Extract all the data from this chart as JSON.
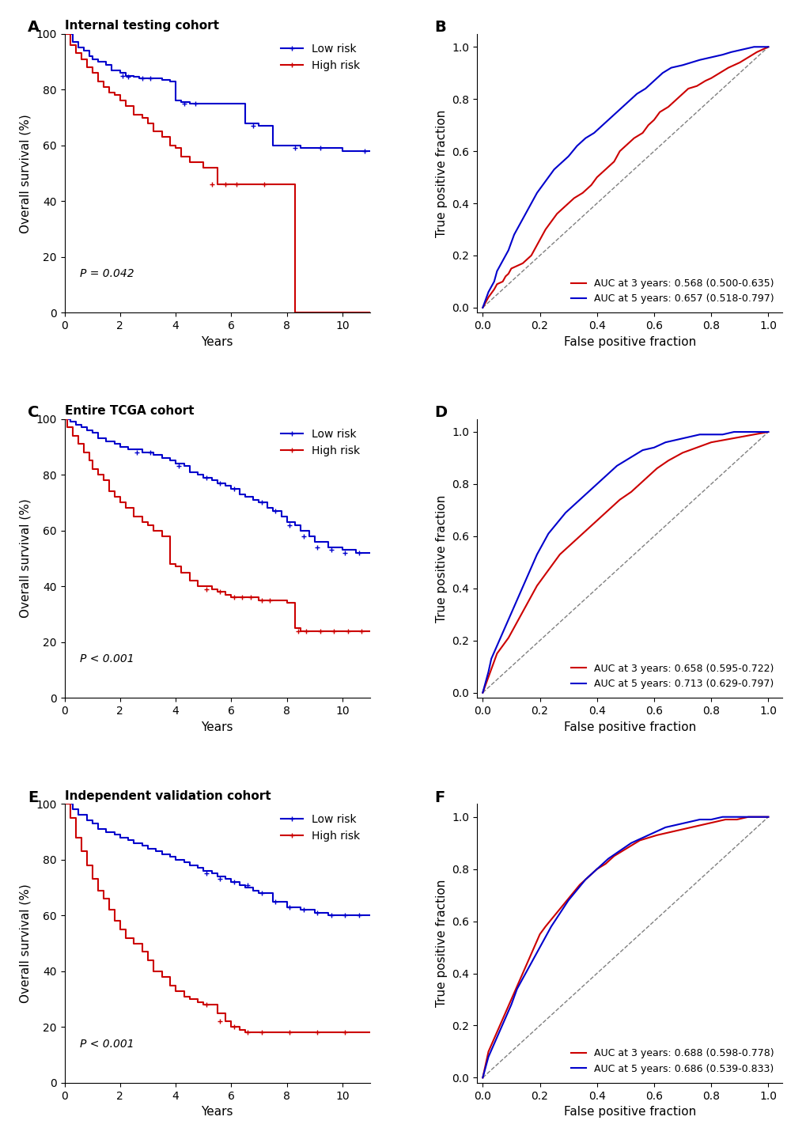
{
  "panels": [
    {
      "label": "A",
      "title": "Internal testing cohort",
      "type": "km",
      "p_value": "P = 0.042",
      "low_risk": {
        "times": [
          0,
          0.3,
          0.5,
          0.7,
          0.9,
          1.0,
          1.2,
          1.5,
          1.7,
          2.0,
          2.2,
          2.5,
          2.7,
          3.0,
          3.5,
          3.8,
          4.0,
          4.2,
          4.5,
          5.0,
          5.5,
          6.0,
          6.5,
          7.0,
          7.5,
          8.0,
          8.5,
          9.0,
          9.5,
          10.0,
          10.5,
          11.0
        ],
        "survival": [
          100,
          97,
          95,
          94,
          92,
          91,
          90,
          89,
          87,
          86,
          85,
          84.5,
          84,
          84,
          83.5,
          83,
          76,
          75.5,
          75,
          75,
          75,
          75,
          68,
          67,
          60,
          60,
          59,
          59,
          59,
          58,
          58,
          58
        ],
        "censored_times": [
          2.1,
          2.3,
          2.8,
          3.1,
          4.3,
          4.7,
          6.8,
          8.3,
          9.2,
          10.8
        ],
        "censored_surv": [
          85,
          84.5,
          84,
          84,
          75,
          75,
          67,
          59,
          59,
          58
        ]
      },
      "high_risk": {
        "times": [
          0,
          0.2,
          0.4,
          0.6,
          0.8,
          1.0,
          1.2,
          1.4,
          1.6,
          1.8,
          2.0,
          2.2,
          2.5,
          2.8,
          3.0,
          3.2,
          3.5,
          3.8,
          4.0,
          4.2,
          4.5,
          4.8,
          5.0,
          5.2,
          5.5,
          6.0,
          6.5,
          7.0,
          7.5,
          8.0,
          8.3,
          8.5,
          11.0
        ],
        "survival": [
          100,
          96,
          93,
          91,
          88,
          86,
          83,
          81,
          79,
          78,
          76,
          74,
          71,
          70,
          68,
          65,
          63,
          60,
          59,
          56,
          54,
          54,
          52,
          52,
          46,
          46,
          46,
          46,
          46,
          46,
          0,
          0,
          0
        ],
        "censored_times": [
          5.3,
          5.8,
          6.2,
          7.2
        ],
        "censored_surv": [
          46,
          46,
          46,
          46
        ]
      },
      "xlim": [
        0,
        11
      ],
      "ylim": [
        0,
        100
      ],
      "xticks": [
        0,
        2,
        4,
        6,
        8,
        10
      ],
      "yticks": [
        0,
        20,
        40,
        60,
        80,
        100
      ]
    },
    {
      "label": "B",
      "type": "roc",
      "auc_3yr": "AUC at 3 years: 0.568 (0.500-0.635)",
      "auc_5yr": "AUC at 5 years: 0.657 (0.518-0.797)",
      "roc_3yr_x": [
        0.0,
        0.01,
        0.02,
        0.04,
        0.05,
        0.07,
        0.08,
        0.09,
        0.1,
        0.12,
        0.14,
        0.15,
        0.17,
        0.18,
        0.2,
        0.22,
        0.24,
        0.26,
        0.28,
        0.3,
        0.32,
        0.35,
        0.38,
        0.4,
        0.43,
        0.46,
        0.48,
        0.5,
        0.53,
        0.56,
        0.58,
        0.6,
        0.62,
        0.65,
        0.68,
        0.7,
        0.72,
        0.75,
        0.78,
        0.8,
        0.83,
        0.86,
        0.9,
        0.93,
        0.96,
        1.0
      ],
      "roc_3yr_y": [
        0.0,
        0.02,
        0.04,
        0.07,
        0.09,
        0.1,
        0.12,
        0.13,
        0.15,
        0.16,
        0.17,
        0.18,
        0.2,
        0.22,
        0.26,
        0.3,
        0.33,
        0.36,
        0.38,
        0.4,
        0.42,
        0.44,
        0.47,
        0.5,
        0.53,
        0.56,
        0.6,
        0.62,
        0.65,
        0.67,
        0.7,
        0.72,
        0.75,
        0.77,
        0.8,
        0.82,
        0.84,
        0.85,
        0.87,
        0.88,
        0.9,
        0.92,
        0.94,
        0.96,
        0.98,
        1.0
      ],
      "roc_5yr_x": [
        0.0,
        0.01,
        0.02,
        0.03,
        0.04,
        0.05,
        0.06,
        0.07,
        0.08,
        0.09,
        0.1,
        0.11,
        0.13,
        0.15,
        0.17,
        0.19,
        0.21,
        0.23,
        0.25,
        0.27,
        0.3,
        0.33,
        0.36,
        0.39,
        0.42,
        0.45,
        0.48,
        0.51,
        0.54,
        0.57,
        0.6,
        0.63,
        0.66,
        0.7,
        0.73,
        0.76,
        0.8,
        0.84,
        0.87,
        0.91,
        0.95,
        1.0
      ],
      "roc_5yr_y": [
        0.0,
        0.03,
        0.06,
        0.08,
        0.1,
        0.14,
        0.16,
        0.18,
        0.2,
        0.22,
        0.25,
        0.28,
        0.32,
        0.36,
        0.4,
        0.44,
        0.47,
        0.5,
        0.53,
        0.55,
        0.58,
        0.62,
        0.65,
        0.67,
        0.7,
        0.73,
        0.76,
        0.79,
        0.82,
        0.84,
        0.87,
        0.9,
        0.92,
        0.93,
        0.94,
        0.95,
        0.96,
        0.97,
        0.98,
        0.99,
        1.0,
        1.0
      ]
    },
    {
      "label": "C",
      "title": "Entire TCGA cohort",
      "type": "km",
      "p_value": "P < 0.001",
      "low_risk": {
        "times": [
          0,
          0.2,
          0.4,
          0.6,
          0.8,
          1.0,
          1.2,
          1.5,
          1.8,
          2.0,
          2.3,
          2.5,
          2.8,
          3.0,
          3.2,
          3.5,
          3.8,
          4.0,
          4.3,
          4.5,
          4.8,
          5.0,
          5.3,
          5.5,
          5.8,
          6.0,
          6.3,
          6.5,
          6.8,
          7.0,
          7.3,
          7.5,
          7.8,
          8.0,
          8.3,
          8.5,
          8.8,
          9.0,
          9.5,
          10.0,
          10.5,
          11.0
        ],
        "survival": [
          100,
          99,
          98,
          97,
          96,
          95,
          93,
          92,
          91,
          90,
          89,
          89,
          88,
          88,
          87,
          86,
          85,
          84,
          83,
          81,
          80,
          79,
          78,
          77,
          76,
          75,
          73,
          72,
          71,
          70,
          68,
          67,
          65,
          63,
          62,
          60,
          58,
          56,
          54,
          53,
          52,
          52
        ],
        "censored_times": [
          2.6,
          3.1,
          4.1,
          5.1,
          5.6,
          6.1,
          7.1,
          7.6,
          8.1,
          8.6,
          9.1,
          9.6,
          10.1,
          10.6
        ],
        "censored_surv": [
          88,
          88,
          83,
          79,
          77,
          75,
          70,
          67,
          62,
          58,
          54,
          53,
          52,
          52
        ]
      },
      "high_risk": {
        "times": [
          0,
          0.1,
          0.3,
          0.5,
          0.7,
          0.9,
          1.0,
          1.2,
          1.4,
          1.6,
          1.8,
          2.0,
          2.2,
          2.5,
          2.8,
          3.0,
          3.2,
          3.5,
          3.8,
          4.0,
          4.2,
          4.5,
          4.8,
          5.0,
          5.3,
          5.5,
          5.8,
          6.0,
          6.3,
          6.5,
          6.8,
          7.0,
          7.3,
          7.5,
          7.8,
          8.0,
          8.3,
          8.5,
          9.0,
          9.5,
          10.0,
          10.5,
          11.0
        ],
        "survival": [
          100,
          97,
          94,
          91,
          88,
          85,
          82,
          80,
          78,
          74,
          72,
          70,
          68,
          65,
          63,
          62,
          60,
          58,
          48,
          47,
          45,
          42,
          40,
          40,
          39,
          38,
          37,
          36,
          36,
          36,
          36,
          35,
          35,
          35,
          35,
          34,
          25,
          24,
          24,
          24,
          24,
          24,
          24
        ],
        "censored_times": [
          5.1,
          5.6,
          6.1,
          6.4,
          6.7,
          7.1,
          7.4,
          8.4,
          8.7,
          9.2,
          9.7,
          10.2,
          10.7
        ],
        "censored_surv": [
          39,
          38,
          36,
          36,
          36,
          35,
          35,
          24,
          24,
          24,
          24,
          24,
          24
        ]
      },
      "xlim": [
        0,
        11
      ],
      "ylim": [
        0,
        100
      ],
      "xticks": [
        0,
        2,
        4,
        6,
        8,
        10
      ],
      "yticks": [
        0,
        20,
        40,
        60,
        80,
        100
      ]
    },
    {
      "label": "D",
      "type": "roc",
      "auc_3yr": "AUC at 3 years: 0.658 (0.595-0.722)",
      "auc_5yr": "AUC at 5 years: 0.713 (0.629-0.797)",
      "roc_3yr_x": [
        0.0,
        0.01,
        0.02,
        0.03,
        0.04,
        0.05,
        0.07,
        0.09,
        0.11,
        0.13,
        0.15,
        0.17,
        0.19,
        0.21,
        0.23,
        0.25,
        0.27,
        0.3,
        0.33,
        0.36,
        0.39,
        0.42,
        0.45,
        0.48,
        0.52,
        0.55,
        0.58,
        0.61,
        0.65,
        0.7,
        0.75,
        0.8,
        0.85,
        0.9,
        0.95,
        1.0
      ],
      "roc_3yr_y": [
        0.0,
        0.03,
        0.06,
        0.09,
        0.12,
        0.15,
        0.18,
        0.21,
        0.25,
        0.29,
        0.33,
        0.37,
        0.41,
        0.44,
        0.47,
        0.5,
        0.53,
        0.56,
        0.59,
        0.62,
        0.65,
        0.68,
        0.71,
        0.74,
        0.77,
        0.8,
        0.83,
        0.86,
        0.89,
        0.92,
        0.94,
        0.96,
        0.97,
        0.98,
        0.99,
        1.0
      ],
      "roc_5yr_x": [
        0.0,
        0.01,
        0.02,
        0.03,
        0.05,
        0.07,
        0.09,
        0.11,
        0.13,
        0.15,
        0.17,
        0.19,
        0.21,
        0.23,
        0.26,
        0.29,
        0.32,
        0.35,
        0.38,
        0.41,
        0.44,
        0.47,
        0.5,
        0.53,
        0.56,
        0.6,
        0.64,
        0.68,
        0.72,
        0.76,
        0.8,
        0.84,
        0.88,
        0.92,
        0.96,
        1.0
      ],
      "roc_5yr_y": [
        0.0,
        0.04,
        0.08,
        0.13,
        0.18,
        0.23,
        0.28,
        0.33,
        0.38,
        0.43,
        0.48,
        0.53,
        0.57,
        0.61,
        0.65,
        0.69,
        0.72,
        0.75,
        0.78,
        0.81,
        0.84,
        0.87,
        0.89,
        0.91,
        0.93,
        0.94,
        0.96,
        0.97,
        0.98,
        0.99,
        0.99,
        0.99,
        1.0,
        1.0,
        1.0,
        1.0
      ]
    },
    {
      "label": "E",
      "title": "Independent validation cohort",
      "type": "km",
      "p_value": "P < 0.001",
      "low_risk": {
        "times": [
          0,
          0.3,
          0.5,
          0.8,
          1.0,
          1.2,
          1.5,
          1.8,
          2.0,
          2.3,
          2.5,
          2.8,
          3.0,
          3.3,
          3.5,
          3.8,
          4.0,
          4.3,
          4.5,
          4.8,
          5.0,
          5.3,
          5.5,
          5.8,
          6.0,
          6.3,
          6.5,
          6.8,
          7.0,
          7.5,
          8.0,
          8.5,
          9.0,
          9.5,
          10.0,
          10.5,
          11.0
        ],
        "survival": [
          100,
          98,
          96,
          94,
          93,
          91,
          90,
          89,
          88,
          87,
          86,
          85,
          84,
          83,
          82,
          81,
          80,
          79,
          78,
          77,
          76,
          75,
          74,
          73,
          72,
          71,
          70,
          69,
          68,
          65,
          63,
          62,
          61,
          60,
          60,
          60,
          60
        ],
        "censored_times": [
          5.1,
          5.6,
          6.1,
          6.6,
          7.1,
          7.6,
          8.1,
          8.6,
          9.1,
          9.6,
          10.1,
          10.6
        ],
        "censored_surv": [
          75,
          73,
          72,
          71,
          68,
          65,
          63,
          62,
          61,
          60,
          60,
          60
        ]
      },
      "high_risk": {
        "times": [
          0,
          0.2,
          0.4,
          0.6,
          0.8,
          1.0,
          1.2,
          1.4,
          1.6,
          1.8,
          2.0,
          2.2,
          2.5,
          2.8,
          3.0,
          3.2,
          3.5,
          3.8,
          4.0,
          4.3,
          4.5,
          4.8,
          5.0,
          5.3,
          5.5,
          5.8,
          6.0,
          6.3,
          6.5,
          6.8,
          7.0,
          7.5,
          8.0,
          8.5,
          9.0,
          9.5,
          10.0,
          10.5,
          11.0
        ],
        "survival": [
          100,
          95,
          88,
          83,
          78,
          73,
          69,
          66,
          62,
          58,
          55,
          52,
          50,
          47,
          44,
          40,
          38,
          35,
          33,
          31,
          30,
          29,
          28,
          28,
          25,
          22,
          20,
          19,
          18,
          18,
          18,
          18,
          18,
          18,
          18,
          18,
          18,
          18,
          18
        ],
        "censored_times": [
          5.1,
          5.6,
          6.1,
          6.6,
          7.1,
          8.1,
          9.1,
          10.1
        ],
        "censored_surv": [
          28,
          22,
          20,
          18,
          18,
          18,
          18,
          18
        ]
      },
      "xlim": [
        0,
        11
      ],
      "ylim": [
        0,
        100
      ],
      "xticks": [
        0,
        2,
        4,
        6,
        8,
        10
      ],
      "yticks": [
        0,
        20,
        40,
        60,
        80,
        100
      ]
    },
    {
      "label": "F",
      "type": "roc",
      "auc_3yr": "AUC at 3 years: 0.688 (0.598-0.778)",
      "auc_5yr": "AUC at 5 years: 0.686 (0.539-0.833)",
      "roc_3yr_x": [
        0.0,
        0.01,
        0.02,
        0.04,
        0.06,
        0.08,
        0.1,
        0.12,
        0.14,
        0.16,
        0.18,
        0.2,
        0.22,
        0.25,
        0.28,
        0.31,
        0.34,
        0.37,
        0.4,
        0.43,
        0.46,
        0.49,
        0.52,
        0.55,
        0.58,
        0.61,
        0.65,
        0.69,
        0.73,
        0.77,
        0.81,
        0.85,
        0.89,
        0.93,
        0.97,
        1.0
      ],
      "roc_3yr_y": [
        0.0,
        0.05,
        0.1,
        0.15,
        0.2,
        0.25,
        0.3,
        0.35,
        0.4,
        0.45,
        0.5,
        0.55,
        0.58,
        0.62,
        0.66,
        0.7,
        0.74,
        0.77,
        0.8,
        0.82,
        0.85,
        0.87,
        0.89,
        0.91,
        0.92,
        0.93,
        0.94,
        0.95,
        0.96,
        0.97,
        0.98,
        0.99,
        0.99,
        1.0,
        1.0,
        1.0
      ],
      "roc_5yr_x": [
        0.0,
        0.01,
        0.02,
        0.04,
        0.06,
        0.08,
        0.1,
        0.12,
        0.15,
        0.18,
        0.21,
        0.24,
        0.27,
        0.3,
        0.33,
        0.36,
        0.4,
        0.44,
        0.48,
        0.52,
        0.56,
        0.6,
        0.64,
        0.68,
        0.72,
        0.76,
        0.8,
        0.84,
        0.88,
        0.92,
        0.96,
        1.0
      ],
      "roc_5yr_y": [
        0.0,
        0.04,
        0.08,
        0.13,
        0.18,
        0.23,
        0.28,
        0.34,
        0.4,
        0.46,
        0.52,
        0.58,
        0.63,
        0.68,
        0.72,
        0.76,
        0.8,
        0.84,
        0.87,
        0.9,
        0.92,
        0.94,
        0.96,
        0.97,
        0.98,
        0.99,
        0.99,
        1.0,
        1.0,
        1.0,
        1.0,
        1.0
      ]
    }
  ],
  "colors": {
    "low_risk": "#0000CC",
    "high_risk": "#CC0000",
    "roc_3yr": "#CC0000",
    "roc_5yr": "#0000CC",
    "diagonal": "#808080"
  }
}
